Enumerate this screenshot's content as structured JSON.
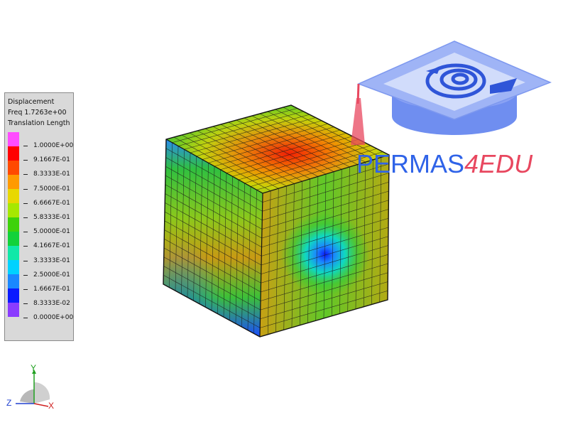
{
  "legend": {
    "title": "Displacement",
    "subtitle": "Freq 1.7263e+00",
    "quantity": "Translation Length",
    "swatch_colors": [
      "#ff4cff",
      "#ff0000",
      "#ff4a00",
      "#ff9a00",
      "#e8d800",
      "#a6e800",
      "#3ed20a",
      "#12d23a",
      "#10e8a8",
      "#00d2ff",
      "#1a88ff",
      "#0a1aff",
      "#8a3cff"
    ],
    "labels": [
      "1.0000E+00",
      "9.1667E-01",
      "8.3333E-01",
      "7.5000E-01",
      "6.6667E-01",
      "5.8333E-01",
      "5.0000E-01",
      "4.1667E-01",
      "3.3333E-01",
      "2.5000E-01",
      "1.6667E-01",
      "8.3333E-02",
      "0.0000E+00"
    ]
  },
  "logo": {
    "word": "PERMAS",
    "suffix": "4EDU",
    "primary_color": "#2f63e8",
    "accent_color": "#e8475f"
  },
  "axes": {
    "x_label": "X",
    "y_label": "Y",
    "z_label": "Z"
  },
  "model": {
    "result": "displacement-contour",
    "mesh_divisions": 16
  }
}
